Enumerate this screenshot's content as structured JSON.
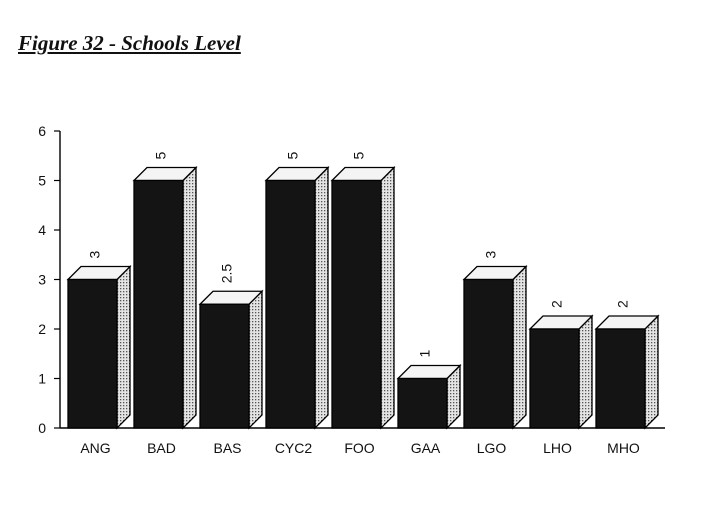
{
  "figure": {
    "title": "Figure 32 - Schools Level"
  },
  "chart_data": {
    "type": "bar",
    "title": "Figure 32 - Schools Level",
    "xlabel": "",
    "ylabel": "",
    "categories": [
      "ANG",
      "BAD",
      "BAS",
      "CYC2",
      "FOO",
      "GAA",
      "LGO",
      "LHO",
      "MHO"
    ],
    "values": [
      3,
      5,
      2.5,
      5,
      5,
      1,
      3,
      2,
      2
    ],
    "value_labels": [
      "3",
      "5",
      "2.5",
      "5",
      "5",
      "1",
      "3",
      "2",
      "2"
    ],
    "ylim": [
      0,
      6
    ],
    "yticks": [
      "0",
      "1",
      "2",
      "3",
      "4",
      "5",
      "6"
    ],
    "grid": false,
    "style": "3d-bar",
    "colors": {
      "bar_front": "#141414",
      "bar_top": "#f4f4f4",
      "bar_side": "#c8c8c8",
      "outline": "#000000"
    }
  }
}
